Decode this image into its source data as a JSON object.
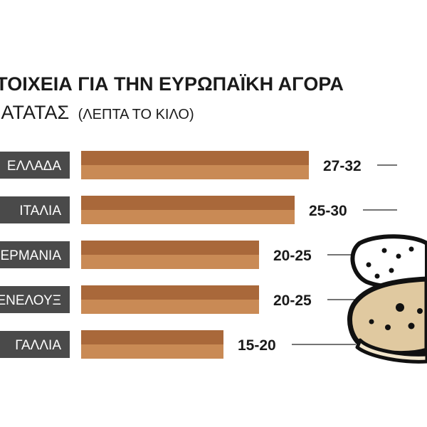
{
  "chart_data": {
    "type": "bar",
    "orientation": "horizontal",
    "title": "ΣΤΟΙΧΕΙΑ ΓΙΑ ΤΗΝ ΕΥΡΩΠΑΪΚΗ ΑΓΟΡΑ",
    "subtitle": "ΠΑΤΑΤΑΣ",
    "unit": "(ΛΕΠΤΑ ΤΟ ΚΙΛΟ)",
    "categories": [
      "ΕΛΛΑΔΑ",
      "ΙΤΑΛΙΑ",
      "ΓΕΡΜΑΝΙΑ",
      "ΜΠΕΝΕΛΟΥΞ",
      "ΓΑΛΛΙΑ"
    ],
    "ranges": [
      [
        27,
        32
      ],
      [
        25,
        30
      ],
      [
        20,
        25
      ],
      [
        20,
        25
      ],
      [
        15,
        20
      ]
    ],
    "value_labels": [
      "27-32",
      "25-30",
      "20-25",
      "20-25",
      "15-20"
    ],
    "bar_top_color": "#a9683a",
    "bar_bottom_color": "#c98a55",
    "label_box_color": "#4a4a4a",
    "xlim": [
      0,
      34
    ]
  },
  "illustration": {
    "icon": "potato-icon",
    "body_color": "#e0c9a0",
    "outline_color": "#111111",
    "cut_color": "#f2e6cc"
  }
}
